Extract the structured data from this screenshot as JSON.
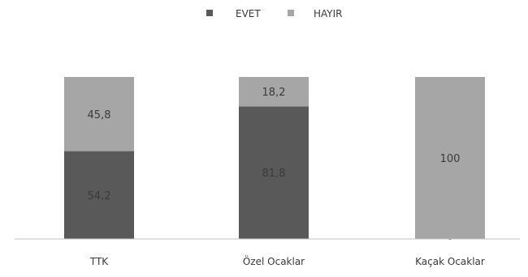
{
  "chart_data": {
    "type": "bar",
    "stacked": true,
    "percent": true,
    "categories": [
      "TTK",
      "Özel Ocaklar",
      "Kaçak Ocaklar"
    ],
    "series": [
      {
        "name": "EVET",
        "values": [
          54.2,
          81.8,
          0
        ],
        "labels": [
          "54,2",
          "81,8",
          "0"
        ],
        "color": "#595959"
      },
      {
        "name": "HAYIR",
        "values": [
          45.8,
          18.2,
          100
        ],
        "labels": [
          "45,8",
          "18,2",
          "100"
        ],
        "color": "#a6a6a6"
      }
    ],
    "ylim": [
      0,
      100
    ],
    "legend": "top-center",
    "grid": false
  }
}
